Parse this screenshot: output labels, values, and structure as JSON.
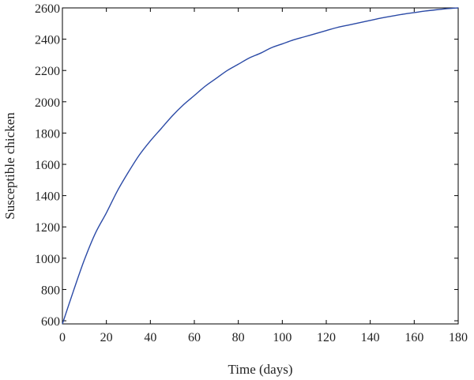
{
  "chart_data": {
    "type": "line",
    "title": "",
    "xlabel": "Time (days)",
    "ylabel": "Susceptible chicken",
    "xlim": [
      0,
      180
    ],
    "ylim": [
      580,
      2600
    ],
    "x_ticks": [
      0,
      20,
      40,
      60,
      80,
      100,
      120,
      140,
      160,
      180
    ],
    "y_ticks": [
      600,
      800,
      1000,
      1200,
      1400,
      1600,
      1800,
      2000,
      2200,
      2400,
      2600
    ],
    "grid": false,
    "legend": "none",
    "line_color": "#2b4aa6",
    "series": [
      {
        "x": [
          0,
          5,
          10,
          15,
          20,
          25,
          30,
          35,
          40,
          45,
          50,
          55,
          60,
          65,
          70,
          75,
          80,
          85,
          90,
          95,
          100,
          105,
          110,
          115,
          120,
          125,
          130,
          135,
          140,
          145,
          150,
          155,
          160,
          165,
          170,
          175,
          180
        ],
        "y": [
          580,
          790,
          990,
          1160,
          1290,
          1430,
          1550,
          1660,
          1750,
          1830,
          1910,
          1980,
          2040,
          2100,
          2150,
          2200,
          2240,
          2280,
          2310,
          2345,
          2370,
          2395,
          2415,
          2435,
          2455,
          2475,
          2490,
          2505,
          2520,
          2535,
          2548,
          2560,
          2570,
          2580,
          2588,
          2595,
          2600
        ]
      }
    ]
  }
}
